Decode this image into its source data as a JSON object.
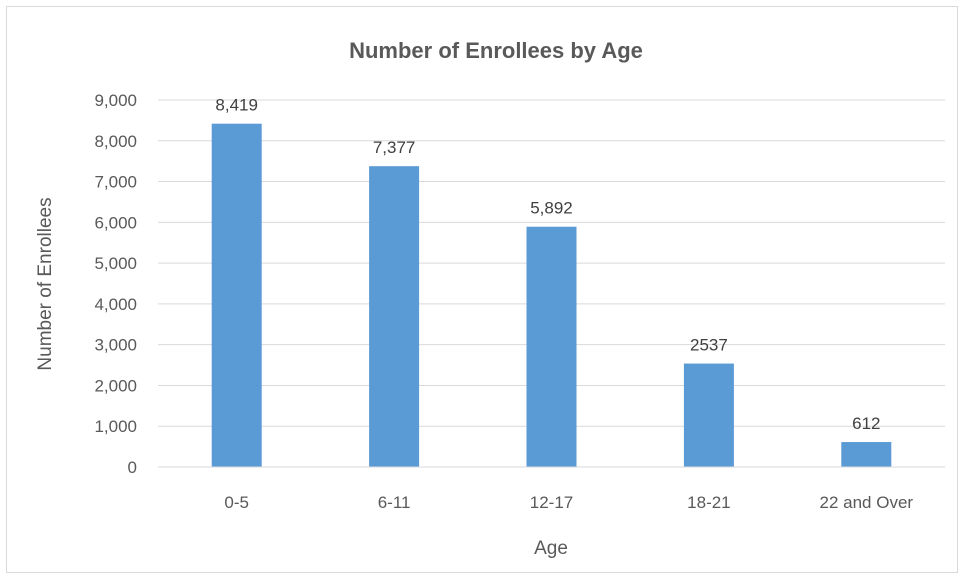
{
  "chart_data": {
    "type": "bar",
    "title": "Number of Enrollees by Age",
    "xlabel": "Age",
    "ylabel": "Number of Enrollees",
    "categories": [
      "0-5",
      "6-11",
      "12-17",
      "18-21",
      "22 and Over"
    ],
    "values": [
      8419,
      7377,
      5892,
      2537,
      612
    ],
    "data_labels": [
      "8,419",
      "7,377",
      "5,892",
      "2537",
      "612"
    ],
    "ylim": [
      0,
      9000
    ],
    "yticks": [
      0,
      1000,
      2000,
      3000,
      4000,
      5000,
      6000,
      7000,
      8000,
      9000
    ],
    "ytick_labels": [
      "0",
      "1,000",
      "2,000",
      "3,000",
      "4,000",
      "5,000",
      "6,000",
      "7,000",
      "8,000",
      "9,000"
    ],
    "grid": true,
    "legend": "none",
    "bar_color": "#5b9bd5"
  }
}
